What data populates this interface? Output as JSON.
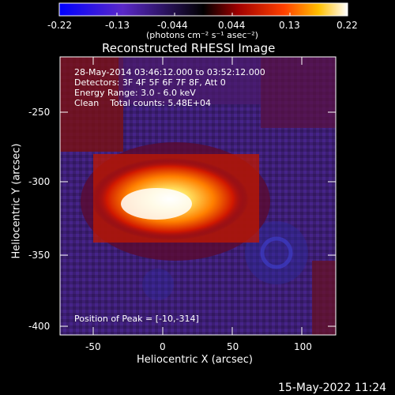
{
  "colorbar": {
    "ticks": [
      "-0.22",
      "-0.13",
      "-0.044",
      "0.044",
      "0.13",
      "0.22"
    ],
    "units": "(photons cm⁻² s⁻¹ asec⁻²)"
  },
  "title": "Reconstructed RHESSI Image",
  "info": {
    "line1": "28-May-2014 03:46:12.000 to 03:52:12.000",
    "line2": "Detectors: 3F 4F 5F 6F 7F 8F, Att 0",
    "line3": "Energy Range: 3.0 - 6.0 keV",
    "line4": "Clean    Total counts: 5.48E+04",
    "peak": "Position of Peak = [-10,-314]"
  },
  "axes": {
    "xlabel": "Heliocentric X (arcsec)",
    "ylabel": "Heliocentric Y (arcsec)",
    "xticks": [
      "-50",
      "0",
      "50",
      "100"
    ],
    "yticks": [
      "-250",
      "-300",
      "-350",
      "-400"
    ]
  },
  "footer_timestamp": "15-May-2022 11:24",
  "chart_data": {
    "type": "heatmap",
    "title": "Reconstructed RHESSI Image",
    "xlabel": "Heliocentric X (arcsec)",
    "ylabel": "Heliocentric Y (arcsec)",
    "xlim": [
      -73,
      122
    ],
    "ylim": [
      -408,
      -218
    ],
    "colorbar_range": [
      -0.22,
      0.22
    ],
    "colorbar_ticks": [
      -0.22,
      -0.13,
      -0.044,
      0.044,
      0.13,
      0.22
    ],
    "peak": {
      "x": -10,
      "y": -314
    }
  }
}
